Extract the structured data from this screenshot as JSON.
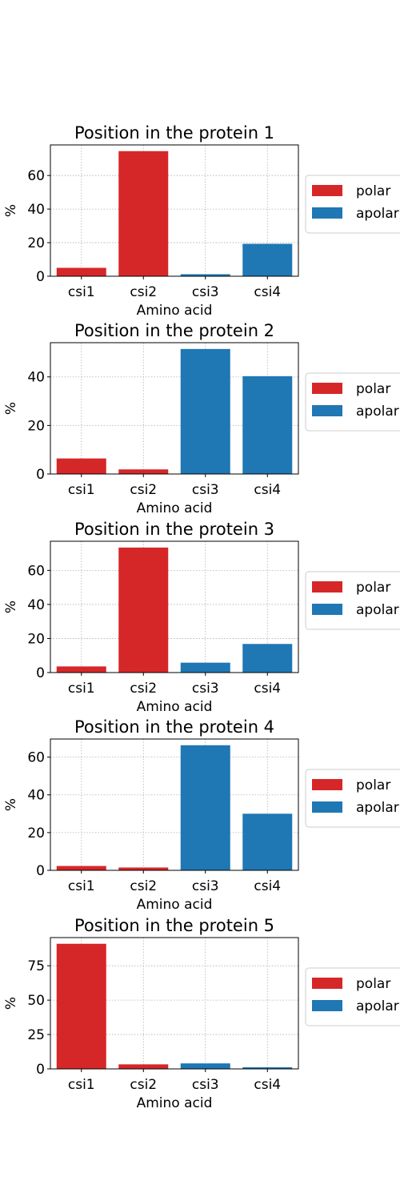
{
  "chart_data": [
    {
      "type": "bar",
      "title": "Position in the protein 1",
      "xlabel": "Amino acid",
      "ylabel": "%",
      "categories": [
        "csi1",
        "csi2",
        "csi3",
        "csi4"
      ],
      "values": [
        5.0,
        74.5,
        1.2,
        19.3
      ],
      "colors": [
        "#d62728",
        "#d62728",
        "#1f77b4",
        "#1f77b4"
      ],
      "ylim": [
        0,
        78.2
      ],
      "yticks": [
        0,
        20,
        40,
        60
      ],
      "grid": true,
      "legend": {
        "placement": "right",
        "entries": [
          {
            "label": "polar",
            "color": "#d62728"
          },
          {
            "label": "apolar",
            "color": "#1f77b4"
          }
        ]
      }
    },
    {
      "type": "bar",
      "title": "Position in the protein 2",
      "xlabel": "Amino acid",
      "ylabel": "%",
      "categories": [
        "csi1",
        "csi2",
        "csi3",
        "csi4"
      ],
      "values": [
        6.4,
        1.9,
        51.5,
        40.3
      ],
      "colors": [
        "#d62728",
        "#d62728",
        "#1f77b4",
        "#1f77b4"
      ],
      "ylim": [
        0,
        54.1
      ],
      "yticks": [
        0,
        20,
        40
      ],
      "grid": true,
      "legend": {
        "placement": "right",
        "entries": [
          {
            "label": "polar",
            "color": "#d62728"
          },
          {
            "label": "apolar",
            "color": "#1f77b4"
          }
        ]
      }
    },
    {
      "type": "bar",
      "title": "Position in the protein 3",
      "xlabel": "Amino acid",
      "ylabel": "%",
      "categories": [
        "csi1",
        "csi2",
        "csi3",
        "csi4"
      ],
      "values": [
        3.6,
        73.4,
        5.8,
        16.8
      ],
      "colors": [
        "#d62728",
        "#d62728",
        "#1f77b4",
        "#1f77b4"
      ],
      "ylim": [
        0,
        77.1
      ],
      "yticks": [
        0,
        20,
        40,
        60
      ],
      "grid": true,
      "legend": {
        "placement": "right",
        "entries": [
          {
            "label": "polar",
            "color": "#d62728"
          },
          {
            "label": "apolar",
            "color": "#1f77b4"
          }
        ]
      }
    },
    {
      "type": "bar",
      "title": "Position in the protein 4",
      "xlabel": "Amino acid",
      "ylabel": "%",
      "categories": [
        "csi1",
        "csi2",
        "csi3",
        "csi4"
      ],
      "values": [
        2.3,
        1.5,
        66.3,
        30.0
      ],
      "colors": [
        "#d62728",
        "#d62728",
        "#1f77b4",
        "#1f77b4"
      ],
      "ylim": [
        0,
        69.6
      ],
      "yticks": [
        0,
        20,
        40,
        60
      ],
      "grid": true,
      "legend": {
        "placement": "right",
        "entries": [
          {
            "label": "polar",
            "color": "#d62728"
          },
          {
            "label": "apolar",
            "color": "#1f77b4"
          }
        ]
      }
    },
    {
      "type": "bar",
      "title": "Position in the protein 5",
      "xlabel": "Amino acid",
      "ylabel": "%",
      "categories": [
        "csi1",
        "csi2",
        "csi3",
        "csi4"
      ],
      "values": [
        91.0,
        3.3,
        4.0,
        1.2
      ],
      "colors": [
        "#d62728",
        "#d62728",
        "#1f77b4",
        "#1f77b4"
      ],
      "ylim": [
        0,
        95.5
      ],
      "yticks": [
        0,
        25,
        50,
        75
      ],
      "grid": true,
      "legend": {
        "placement": "right",
        "entries": [
          {
            "label": "polar",
            "color": "#d62728"
          },
          {
            "label": "apolar",
            "color": "#1f77b4"
          }
        ]
      }
    }
  ]
}
